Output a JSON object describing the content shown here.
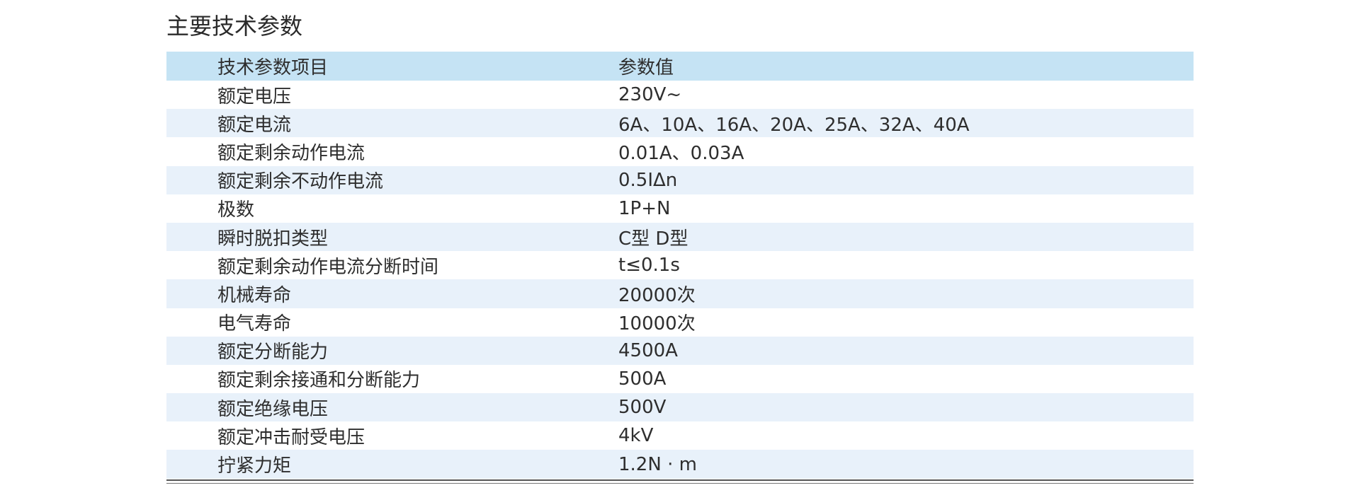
{
  "title": "主要技术参数",
  "table": {
    "headers": [
      "技术参数项目",
      "参数值"
    ],
    "rows": [
      [
        "额定电压",
        "230V~"
      ],
      [
        "额定电流",
        "6A、10A、16A、20A、25A、32A、40A"
      ],
      [
        "额定剩余动作电流",
        "0.01A、0.03A"
      ],
      [
        "额定剩余不动作电流",
        "0.5IΔn"
      ],
      [
        "极数",
        "1P+N"
      ],
      [
        "瞬时脱扣类型",
        "C型  D型"
      ],
      [
        "额定剩余动作电流分断时间",
        "t≤0.1s"
      ],
      [
        "机械寿命",
        "20000次"
      ],
      [
        "电气寿命",
        "10000次"
      ],
      [
        "额定分断能力",
        "4500A"
      ],
      [
        "额定剩余接通和分断能力",
        "500A"
      ],
      [
        "额定绝缘电压",
        "500V"
      ],
      [
        "额定冲击耐受电压",
        "4kV"
      ],
      [
        "拧紧力矩",
        "1.2N · m"
      ]
    ]
  },
  "colors": {
    "header_bg": "#c5e3f4",
    "alt_row_bg": "#e8f1fa"
  }
}
